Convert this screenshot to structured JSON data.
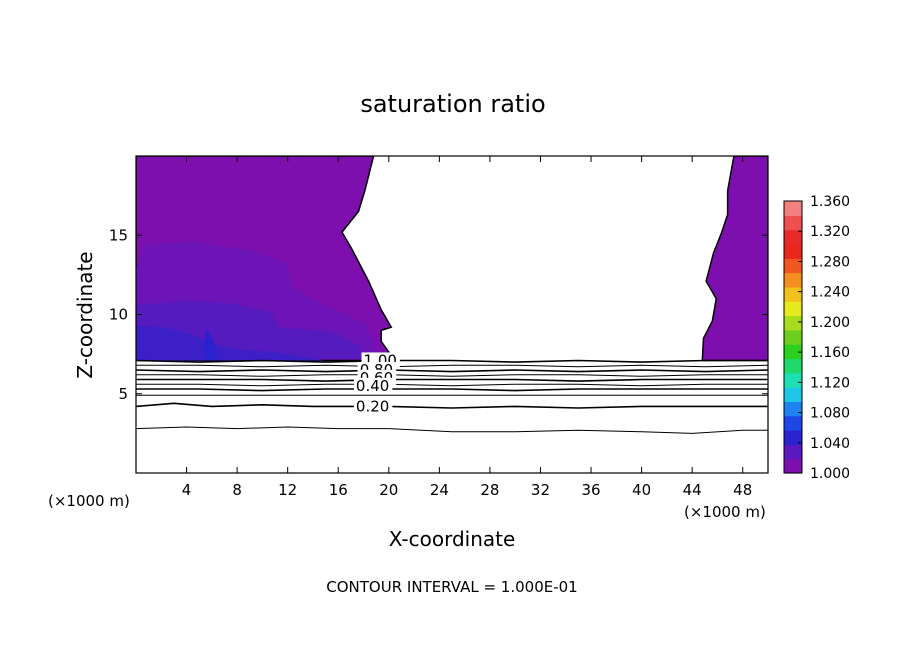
{
  "chart_data": {
    "type": "contour",
    "title": "saturation ratio",
    "xlabel": "X-coordinate",
    "ylabel": "Z-coordinate",
    "x_unit": "(×1000 m)",
    "x_unit_right": "(×1000 m)",
    "xlim": [
      0,
      50
    ],
    "ylim": [
      0,
      20
    ],
    "x_ticks": [
      4,
      8,
      12,
      16,
      20,
      24,
      28,
      32,
      36,
      40,
      44,
      48
    ],
    "y_ticks": [
      5,
      10,
      15
    ],
    "footer": "CONTOUR INTERVAL = 1.000E-01",
    "contour_interval": 0.1,
    "contour_labels": [
      {
        "text": "1.00",
        "value": 1.0,
        "x": 18.0,
        "z": 7.1
      },
      {
        "text": "0.80",
        "value": 0.8,
        "x": 17.7,
        "z": 6.5
      },
      {
        "text": "0.60",
        "value": 0.6,
        "x": 17.7,
        "z": 6.0
      },
      {
        "text": "0.40",
        "value": 0.4,
        "x": 17.4,
        "z": 5.5
      },
      {
        "text": "0.20",
        "value": 0.2,
        "x": 17.4,
        "z": 4.2
      }
    ],
    "contour_lines": [
      {
        "value": 1.0,
        "points": [
          [
            0,
            7.1
          ],
          [
            5,
            7.0
          ],
          [
            10,
            7.1
          ],
          [
            15,
            7.0
          ],
          [
            20,
            7.1
          ],
          [
            25,
            7.1
          ],
          [
            30,
            7.0
          ],
          [
            35,
            7.1
          ],
          [
            40,
            7.0
          ],
          [
            45,
            7.1
          ],
          [
            50,
            7.1
          ]
        ]
      },
      {
        "value": 0.9,
        "points": [
          [
            0,
            6.8
          ],
          [
            5,
            6.8
          ],
          [
            10,
            6.7
          ],
          [
            15,
            6.8
          ],
          [
            20,
            6.7
          ],
          [
            25,
            6.8
          ],
          [
            30,
            6.8
          ],
          [
            35,
            6.7
          ],
          [
            40,
            6.8
          ],
          [
            45,
            6.7
          ],
          [
            50,
            6.8
          ]
        ]
      },
      {
        "value": 0.8,
        "points": [
          [
            0,
            6.5
          ],
          [
            5,
            6.4
          ],
          [
            10,
            6.5
          ],
          [
            15,
            6.4
          ],
          [
            20,
            6.5
          ],
          [
            25,
            6.4
          ],
          [
            30,
            6.5
          ],
          [
            35,
            6.4
          ],
          [
            40,
            6.5
          ],
          [
            45,
            6.4
          ],
          [
            50,
            6.5
          ]
        ]
      },
      {
        "value": 0.7,
        "points": [
          [
            0,
            6.2
          ],
          [
            5,
            6.2
          ],
          [
            10,
            6.1
          ],
          [
            15,
            6.2
          ],
          [
            20,
            6.2
          ],
          [
            25,
            6.1
          ],
          [
            30,
            6.2
          ],
          [
            35,
            6.2
          ],
          [
            40,
            6.1
          ],
          [
            45,
            6.2
          ],
          [
            50,
            6.2
          ]
        ]
      },
      {
        "value": 0.6,
        "points": [
          [
            0,
            5.9
          ],
          [
            5,
            5.9
          ],
          [
            10,
            5.9
          ],
          [
            15,
            5.8
          ],
          [
            20,
            5.9
          ],
          [
            25,
            5.9
          ],
          [
            30,
            5.9
          ],
          [
            35,
            5.8
          ],
          [
            40,
            5.9
          ],
          [
            45,
            5.9
          ],
          [
            50,
            5.9
          ]
        ]
      },
      {
        "value": 0.5,
        "points": [
          [
            0,
            5.6
          ],
          [
            5,
            5.6
          ],
          [
            10,
            5.5
          ],
          [
            15,
            5.6
          ],
          [
            20,
            5.6
          ],
          [
            25,
            5.5
          ],
          [
            30,
            5.6
          ],
          [
            35,
            5.6
          ],
          [
            40,
            5.5
          ],
          [
            45,
            5.6
          ],
          [
            50,
            5.6
          ]
        ]
      },
      {
        "value": 0.4,
        "points": [
          [
            0,
            5.3
          ],
          [
            5,
            5.3
          ],
          [
            10,
            5.2
          ],
          [
            15,
            5.3
          ],
          [
            20,
            5.3
          ],
          [
            25,
            5.3
          ],
          [
            30,
            5.2
          ],
          [
            35,
            5.3
          ],
          [
            40,
            5.3
          ],
          [
            45,
            5.3
          ],
          [
            50,
            5.3
          ]
        ]
      },
      {
        "value": 0.3,
        "points": [
          [
            0,
            4.9
          ],
          [
            5,
            4.9
          ],
          [
            10,
            4.9
          ],
          [
            15,
            4.9
          ],
          [
            20,
            4.9
          ],
          [
            25,
            4.9
          ],
          [
            30,
            4.9
          ],
          [
            35,
            4.9
          ],
          [
            40,
            4.9
          ],
          [
            45,
            4.9
          ],
          [
            50,
            4.9
          ]
        ]
      },
      {
        "value": 0.2,
        "points": [
          [
            0,
            4.2
          ],
          [
            3,
            4.4
          ],
          [
            6,
            4.2
          ],
          [
            10,
            4.3
          ],
          [
            14,
            4.2
          ],
          [
            20,
            4.2
          ],
          [
            25,
            4.1
          ],
          [
            30,
            4.2
          ],
          [
            35,
            4.1
          ],
          [
            40,
            4.2
          ],
          [
            45,
            4.2
          ],
          [
            50,
            4.2
          ]
        ]
      },
      {
        "value": 0.1,
        "points": [
          [
            0,
            2.8
          ],
          [
            4,
            2.9
          ],
          [
            8,
            2.8
          ],
          [
            12,
            2.9
          ],
          [
            16,
            2.8
          ],
          [
            20,
            2.8
          ],
          [
            25,
            2.6
          ],
          [
            30,
            2.6
          ],
          [
            35,
            2.7
          ],
          [
            40,
            2.6
          ],
          [
            44,
            2.5
          ],
          [
            48,
            2.7
          ],
          [
            50,
            2.7
          ]
        ]
      }
    ],
    "filled_regions": [
      {
        "level": 1.0,
        "color": "#7d0fae",
        "points": [
          [
            0,
            20
          ],
          [
            18.8,
            20
          ],
          [
            18.1,
            17.8
          ],
          [
            17.6,
            16.5
          ],
          [
            16.3,
            15.2
          ],
          [
            17.1,
            14.1
          ],
          [
            18.4,
            12.1
          ],
          [
            19.4,
            10.3
          ],
          [
            20.2,
            9.2
          ],
          [
            19.4,
            9.0
          ],
          [
            19.4,
            8.3
          ],
          [
            20.3,
            7.3
          ],
          [
            19.7,
            7.1
          ],
          [
            0,
            7.1
          ]
        ]
      },
      {
        "level": 1.0,
        "color": "#7d0fae",
        "points": [
          [
            50,
            20
          ],
          [
            47.3,
            20
          ],
          [
            46.8,
            17.8
          ],
          [
            46.8,
            16.3
          ],
          [
            46.3,
            15.1
          ],
          [
            45.7,
            13.9
          ],
          [
            45.1,
            12.1
          ],
          [
            45.9,
            11.0
          ],
          [
            45.6,
            9.6
          ],
          [
            44.9,
            8.5
          ],
          [
            44.8,
            7.1
          ],
          [
            50,
            7.1
          ]
        ]
      },
      {
        "level": 1.01,
        "color": "#6c14b6",
        "points": [
          [
            0.8,
            14.4
          ],
          [
            4.5,
            14.6
          ],
          [
            9.4,
            14.0
          ],
          [
            12,
            13.2
          ],
          [
            12.3,
            11.8
          ],
          [
            13.6,
            11.1
          ],
          [
            15.8,
            10.3
          ],
          [
            18.2,
            9.4
          ],
          [
            19.2,
            7.4
          ],
          [
            0,
            7.1
          ],
          [
            0,
            12.9
          ]
        ]
      },
      {
        "level": 1.02,
        "color": "#561bbf",
        "points": [
          [
            0,
            10.6
          ],
          [
            4.1,
            10.9
          ],
          [
            7.6,
            10.7
          ],
          [
            10.8,
            10.1
          ],
          [
            11.2,
            9.2
          ],
          [
            15.6,
            8.9
          ],
          [
            17.8,
            8.0
          ],
          [
            17.8,
            7.2
          ],
          [
            0,
            7.1
          ]
        ]
      },
      {
        "level": 1.03,
        "color": "#3d1fc8",
        "points": [
          [
            0,
            9.3
          ],
          [
            2.4,
            9.2
          ],
          [
            4.9,
            8.6
          ],
          [
            6.2,
            8.1
          ],
          [
            8.1,
            7.8
          ],
          [
            11.2,
            7.6
          ],
          [
            13.5,
            7.3
          ],
          [
            14.9,
            7.1
          ],
          [
            0,
            7.1
          ]
        ]
      },
      {
        "level": 1.04,
        "color": "#2a22cf",
        "points": [
          [
            5.6,
            9.1
          ],
          [
            6.1,
            8.4
          ],
          [
            6.5,
            7.4
          ],
          [
            6.1,
            7.1
          ],
          [
            5.6,
            7.1
          ],
          [
            5.3,
            7.7
          ]
        ]
      }
    ],
    "colorbar": {
      "min": 1.0,
      "max": 1.36,
      "labels": [
        "1.360",
        "1.320",
        "1.280",
        "1.240",
        "1.200",
        "1.160",
        "1.120",
        "1.080",
        "1.040",
        "1.000"
      ],
      "colors": [
        "#7d0fae",
        "#5a18c0",
        "#2a22cf",
        "#1f46e6",
        "#1e82f2",
        "#1ec6e8",
        "#1ee0b4",
        "#1ed96c",
        "#2ad11e",
        "#6ccf1e",
        "#a8dc1e",
        "#e6ea1e",
        "#f0c21e",
        "#f48e1e",
        "#f0581e",
        "#e8261e",
        "#e82a2a",
        "#ee5050",
        "#f48080"
      ]
    }
  }
}
